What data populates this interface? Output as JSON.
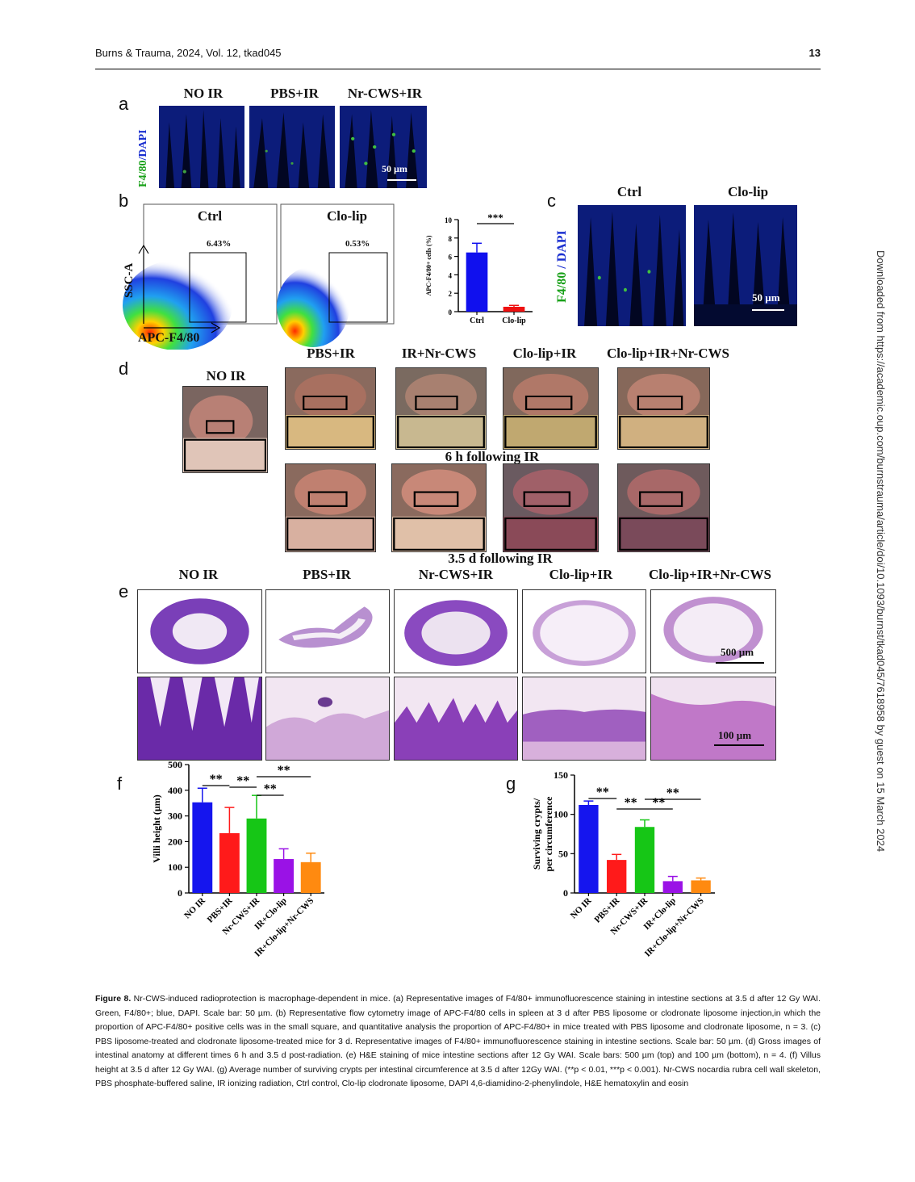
{
  "header": {
    "journal": "Burns & Trauma, 2024, Vol. 12, tkad045",
    "page": "13"
  },
  "side_note": "Downloaded from https://academic.oup.com/burnstrauma/article/doi/10.1093/burnst/tkad045/7618958 by guest on 15 March 2024",
  "panels": {
    "a": {
      "letter": "a",
      "labels": [
        "NO IR",
        "PBS+IR",
        "Nr-CWS+IR"
      ],
      "ylab_green": "F4/80",
      "ylab_blue": "/DAPI",
      "scale": "50 µm"
    },
    "b": {
      "letter": "b",
      "plots": [
        {
          "title": "Ctrl",
          "pct": "6.43%"
        },
        {
          "title": "Clo-lip",
          "pct": "0.53%"
        }
      ],
      "ylab": "SSC-A",
      "xlab": "APC-F4/80"
    },
    "c": {
      "letter": "c",
      "labels": [
        "Ctrl",
        "Clo-lip"
      ],
      "ylab_green": "F4/80",
      "ylab_blue": " / DAPI",
      "scale": "50 µm"
    },
    "d": {
      "letter": "d",
      "noir": "NO IR",
      "labels": [
        "PBS+IR",
        "IR+Nr-CWS",
        "Clo-lip+IR",
        "Clo-lip+IR+Nr-CWS"
      ],
      "row1": "6 h following IR",
      "row2": "3.5 d following IR"
    },
    "e": {
      "letter": "e",
      "labels": [
        "NO IR",
        "PBS+IR",
        "Nr-CWS+IR",
        "Clo-lip+IR",
        "Clo-lip+IR+Nr-CWS"
      ],
      "scale_top": "500 µm",
      "scale_bottom": "100 µm"
    },
    "f": {
      "letter": "f"
    },
    "g": {
      "letter": "g"
    }
  },
  "chart_data": [
    {
      "id": "b-bar",
      "type": "bar",
      "categories": [
        "Ctrl",
        "Clo-lip"
      ],
      "values": [
        6.43,
        0.53
      ],
      "errors": [
        1.0,
        0.15
      ],
      "colors": [
        "#1010ee",
        "#ee1111"
      ],
      "ylabel": "APC-F4/80+ cells (%)",
      "ylim": [
        0,
        10
      ],
      "yticks": [
        "0",
        "2",
        "4",
        "6",
        "8",
        "10"
      ],
      "sig": [
        {
          "from": 0,
          "to": 1,
          "label": "***"
        }
      ]
    },
    {
      "id": "f",
      "type": "bar",
      "categories": [
        "NO IR",
        "PBS+IR",
        "Nr-CWS+IR",
        "IR+Clo-lip",
        "IR+Clo-lip+Nr-CWS"
      ],
      "values": [
        353,
        233,
        290,
        132,
        120
      ],
      "errors": [
        55,
        100,
        90,
        40,
        35
      ],
      "colors": [
        "#1515ee",
        "#ff1a1a",
        "#16c616",
        "#9a12e6",
        "#ff8a10"
      ],
      "ylabel": "Villi height (µm)",
      "ylim": [
        0,
        500
      ],
      "yticks": [
        "0",
        "100",
        "200",
        "300",
        "400",
        "500"
      ],
      "sig": [
        {
          "from": 0,
          "to": 1,
          "label": "**"
        },
        {
          "from": 1,
          "to": 2,
          "label": "**"
        },
        {
          "from": 2,
          "to": 3,
          "label": "**"
        },
        {
          "from": 2,
          "to": 4,
          "label": "**"
        }
      ]
    },
    {
      "id": "g",
      "type": "bar",
      "categories": [
        "NO IR",
        "PBS+IR",
        "Nr-CWS+IR",
        "IR+Clo-lip",
        "IR+Clo-lip+Nr-CWS"
      ],
      "values": [
        112,
        42,
        84,
        15,
        16
      ],
      "errors": [
        5,
        7,
        9,
        6,
        3
      ],
      "colors": [
        "#1515ee",
        "#ff1a1a",
        "#16c616",
        "#9a12e6",
        "#ff8a10"
      ],
      "ylabel": "Surviving crypts/ per circumference",
      "ylim": [
        0,
        150
      ],
      "yticks": [
        "0",
        "50",
        "100",
        "150"
      ],
      "sig": [
        {
          "from": 0,
          "to": 1,
          "label": "**"
        },
        {
          "from": 1,
          "to": 2,
          "label": "**"
        },
        {
          "from": 2,
          "to": 3,
          "label": "**"
        },
        {
          "from": 2,
          "to": 4,
          "label": "**"
        }
      ]
    }
  ],
  "caption": {
    "label": "Figure 8.",
    "text": " Nr-CWS-induced radioprotection is macrophage-dependent in mice. (a) Representative images of F4/80+ immunofluorescence staining in intestine sections at 3.5 d after 12 Gy WAI. Green, F4/80+; blue, DAPI. Scale bar: 50 µm. (b) Representative flow cytometry image of APC-F4/80 cells in spleen at 3 d after PBS liposome or clodronate liposome injection,in which the proportion of APC-F4/80+ positive cells was in the small square, and quantitative analysis the proportion of APC-F4/80+ in mice treated with PBS liposome and clodronate liposome, n = 3. (c) PBS liposome-treated and clodronate liposome-treated mice for 3 d. Representative images of F4/80+ immunofluorescence staining in intestine sections. Scale bar: 50 µm. (d) Gross images of intestinal anatomy at different times 6 h and 3.5 d post-radiation. (e) H&E staining of mice intestine sections after 12 Gy WAI. Scale bars: 500 µm (top) and 100 µm (bottom), n = 4. (f) Villus height at 3.5 d after 12 Gy WAI. (g) Average number of surviving crypts per intestinal circumference at 3.5 d after 12Gy WAI. (**p < 0.01, ***p < 0.001). Nr-CWS nocardia rubra cell wall skeleton, PBS phosphate-buffered saline, IR ionizing radiation, Ctrl control, Clo-lip clodronate liposome, DAPI 4,6-diamidino-2-phenylindole, H&E hematoxylin and eosin"
  }
}
